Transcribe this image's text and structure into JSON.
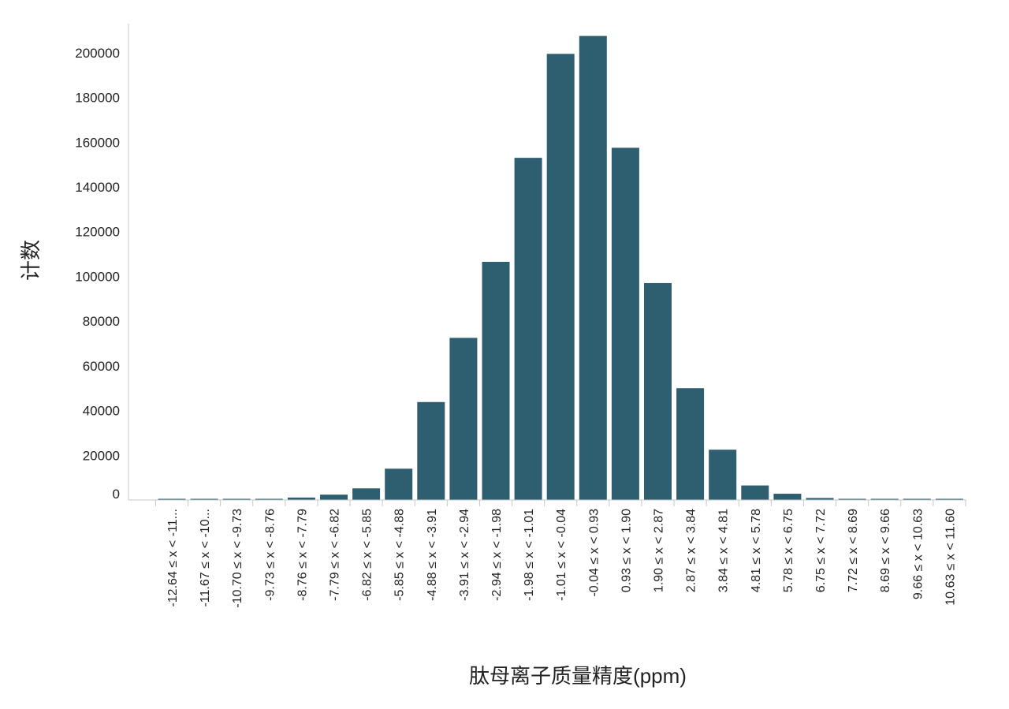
{
  "chart_data": {
    "type": "bar",
    "xlabel": "肽母离子质量精度(ppm)",
    "ylabel": "计数",
    "categories": [
      "-12.64 ≤ x < -11...",
      "-11.67 ≤ x < -10...",
      "-10.70 ≤ x < -9.73",
      "-9.73 ≤ x < -8.76",
      "-8.76 ≤ x < -7.79",
      "-7.79 ≤ x < -6.82",
      "-6.82 ≤ x < -5.85",
      "-5.85 ≤ x < -4.88",
      "-4.88 ≤ x < -3.91",
      "-3.91 ≤ x < -2.94",
      "-2.94 ≤ x < -1.98",
      "-1.98 ≤ x < -1.01",
      "-1.01 ≤ x < -0.04",
      "-0.04 ≤ x < 0.93",
      "0.93 ≤ x < 1.90",
      "1.90 ≤ x < 2.87",
      "2.87 ≤ x < 3.84",
      "3.84 ≤ x < 4.81",
      "4.81 ≤ x < 5.78",
      "5.78 ≤ x < 6.75",
      "6.75 ≤ x < 7.72",
      "7.72 ≤ x < 8.69",
      "8.69 ≤ x < 9.66",
      "9.66 ≤ x < 10.63",
      "10.63 ≤ x < 11.60"
    ],
    "values": [
      200,
      300,
      350,
      500,
      1100,
      2400,
      5200,
      14000,
      43800,
      72500,
      106500,
      153000,
      199500,
      207500,
      157500,
      97000,
      50000,
      22500,
      6500,
      2800,
      900,
      400,
      250,
      180,
      150
    ],
    "yticks": [
      "0",
      "20000",
      "40000",
      "60000",
      "80000",
      "100000",
      "120000",
      "140000",
      "160000",
      "180000",
      "200000"
    ],
    "ytick_values": [
      0,
      20000,
      40000,
      60000,
      80000,
      100000,
      120000,
      140000,
      160000,
      180000,
      200000
    ],
    "ylim": [
      0,
      213000
    ],
    "grid": false,
    "legend": "none",
    "bar_color": "#2e5f70",
    "axis_color": "#c8c8c8"
  }
}
